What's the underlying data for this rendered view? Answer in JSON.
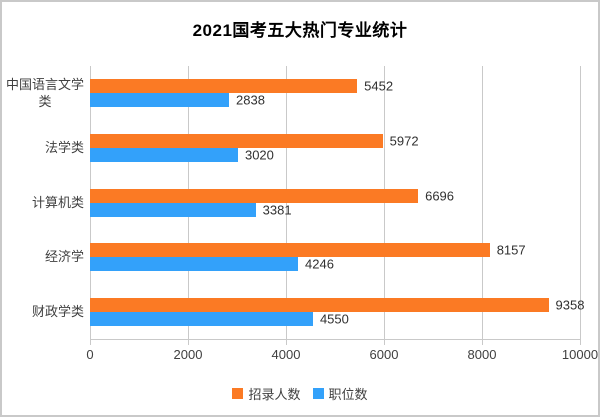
{
  "window": {
    "background": "#ffffff",
    "border_color": "#c9c9c9"
  },
  "chart_data": {
    "type": "bar",
    "orientation": "horizontal",
    "title": "2021国考五大热门专业统计",
    "categories": [
      "中国语言文学类",
      "法学类",
      "计算机类",
      "经济学",
      "财政学类"
    ],
    "series": [
      {
        "name": "招录人数",
        "color": "#fb7a24",
        "values": [
          5452,
          5972,
          6696,
          8157,
          9358
        ]
      },
      {
        "name": "职位数",
        "color": "#33a1fa",
        "values": [
          2838,
          3020,
          3381,
          4246,
          4550
        ]
      }
    ],
    "xlim": [
      0,
      10000
    ],
    "x_ticks": [
      0,
      2000,
      4000,
      6000,
      8000,
      10000
    ],
    "grid": true,
    "gridline_color": "#c9c9c9",
    "axis_text_color": "#404040",
    "data_label_color": "#303030",
    "legend_position": "bottom",
    "data_labels": true
  }
}
